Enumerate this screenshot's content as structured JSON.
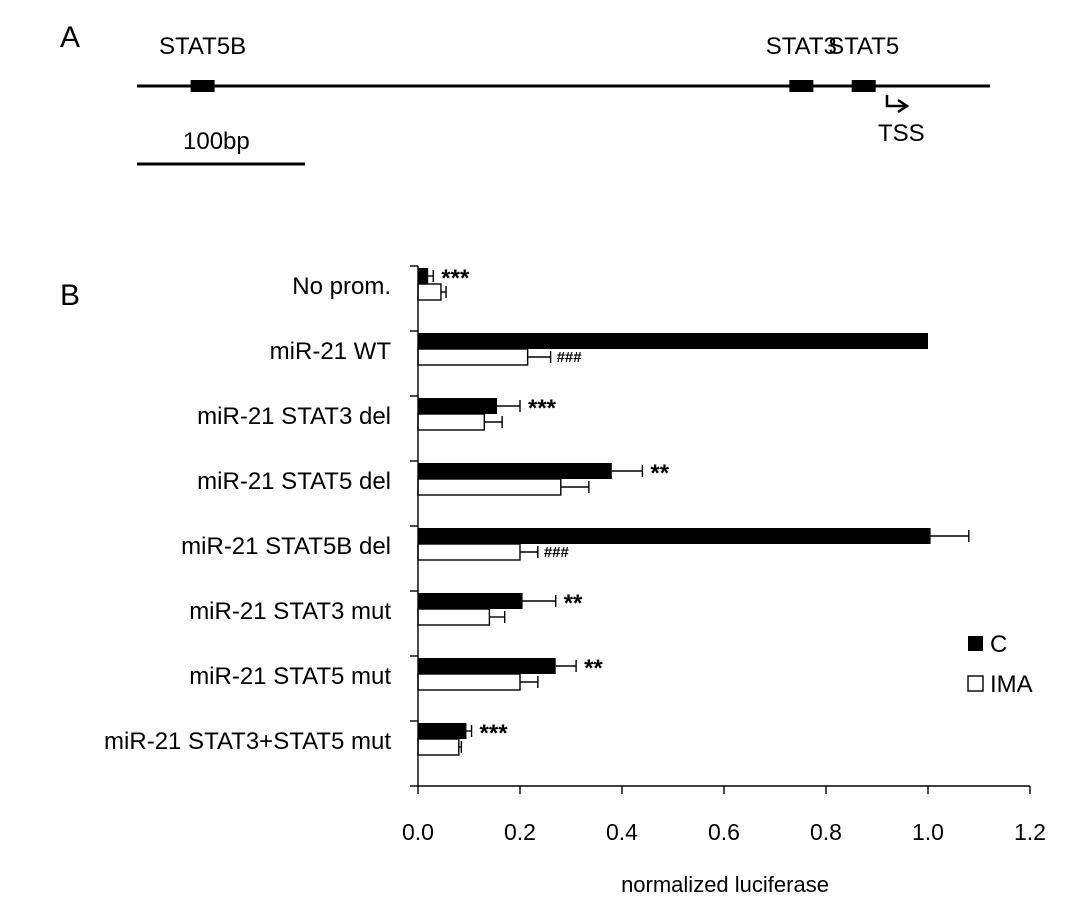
{
  "panel_a": {
    "label": "A",
    "sites": [
      {
        "name": "STAT5B",
        "pos_bp": 40
      },
      {
        "name": "STAT3",
        "pos_bp": 405
      },
      {
        "name": "STAT5",
        "pos_bp": 443
      }
    ],
    "promoter_length_bp": 520,
    "tss_label": "TSS",
    "tss_pos_bp": 452,
    "scale_bar_label": "100bp",
    "scale_bar_bp": 100
  },
  "chart_data": {
    "type": "bar",
    "orientation": "horizontal",
    "panel_label": "B",
    "categories": [
      "No prom.",
      "miR-21 WT",
      "miR-21 STAT3 del",
      "miR-21 STAT5 del",
      "miR-21 STAT5B del",
      "miR-21 STAT3 mut",
      "miR-21 STAT5 mut",
      "miR-21 STAT3+STAT5 mut"
    ],
    "series": [
      {
        "name": "C",
        "color": "#000000",
        "values": [
          0.02,
          1.0,
          0.155,
          0.38,
          1.005,
          0.205,
          0.27,
          0.095
        ],
        "errors": [
          0.01,
          0.0,
          0.045,
          0.06,
          0.075,
          0.065,
          0.04,
          0.01
        ]
      },
      {
        "name": "IMA",
        "color": "#ffffff",
        "values": [
          0.045,
          0.215,
          0.13,
          0.28,
          0.2,
          0.14,
          0.2,
          0.08
        ],
        "errors": [
          0.01,
          0.045,
          0.035,
          0.055,
          0.035,
          0.03,
          0.035,
          0.005
        ]
      }
    ],
    "annotations": [
      {
        "category": 0,
        "series": 0,
        "text": "***"
      },
      {
        "category": 1,
        "series": 1,
        "text": "###"
      },
      {
        "category": 2,
        "series": 0,
        "text": "***"
      },
      {
        "category": 3,
        "series": 0,
        "text": "**"
      },
      {
        "category": 4,
        "series": 1,
        "text": "###"
      },
      {
        "category": 5,
        "series": 0,
        "text": "**"
      },
      {
        "category": 6,
        "series": 0,
        "text": "**"
      },
      {
        "category": 7,
        "series": 0,
        "text": "***"
      }
    ],
    "xlabel": "normalized luciferase",
    "xlim": [
      0.0,
      1.2
    ],
    "xticks": [
      "0.0",
      "0.2",
      "0.4",
      "0.6",
      "0.8",
      "1.0",
      "1.2"
    ],
    "grid": false,
    "legend_position": "right"
  }
}
